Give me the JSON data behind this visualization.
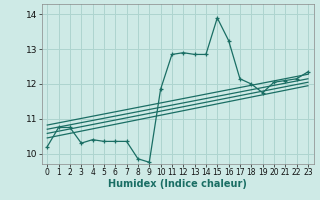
{
  "title": "",
  "xlabel": "Humidex (Indice chaleur)",
  "ylabel": "",
  "bg_color": "#ceeae6",
  "grid_color": "#aed4cf",
  "line_color": "#1a6e64",
  "xlim": [
    -0.5,
    23.5
  ],
  "ylim": [
    9.7,
    14.3
  ],
  "xticks": [
    0,
    1,
    2,
    3,
    4,
    5,
    6,
    7,
    8,
    9,
    10,
    11,
    12,
    13,
    14,
    15,
    16,
    17,
    18,
    19,
    20,
    21,
    22,
    23
  ],
  "yticks": [
    10,
    11,
    12,
    13,
    14
  ],
  "main_x": [
    0,
    1,
    2,
    3,
    4,
    5,
    6,
    7,
    8,
    9,
    10,
    11,
    12,
    13,
    14,
    15,
    16,
    17,
    18,
    19,
    20,
    21,
    22,
    23
  ],
  "main_y": [
    10.2,
    10.75,
    10.75,
    10.3,
    10.4,
    10.35,
    10.35,
    10.35,
    9.85,
    9.75,
    11.85,
    12.85,
    12.9,
    12.85,
    12.85,
    13.9,
    13.25,
    12.15,
    12.0,
    11.75,
    12.05,
    12.1,
    12.15,
    12.35
  ],
  "reg_lines": [
    {
      "x": [
        0,
        23
      ],
      "y": [
        10.45,
        11.95
      ]
    },
    {
      "x": [
        0,
        23
      ],
      "y": [
        10.58,
        12.05
      ]
    },
    {
      "x": [
        0,
        23
      ],
      "y": [
        10.7,
        12.15
      ]
    },
    {
      "x": [
        0,
        23
      ],
      "y": [
        10.82,
        12.28
      ]
    }
  ],
  "tick_fontsize": 6,
  "xlabel_fontsize": 7
}
